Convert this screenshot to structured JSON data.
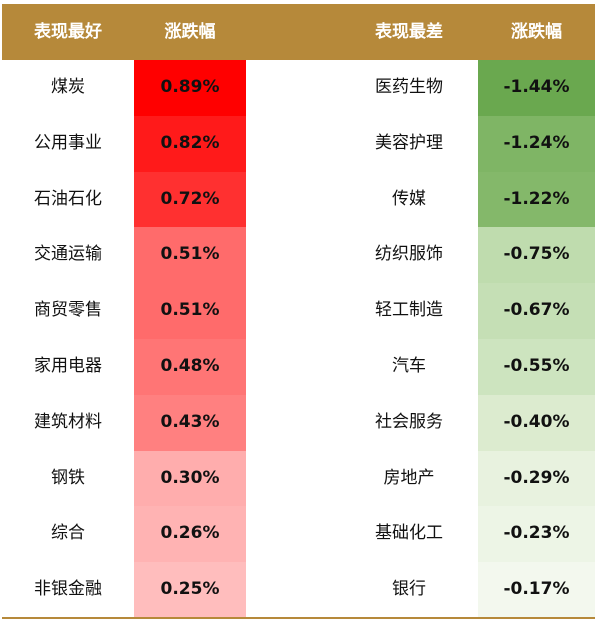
{
  "headers": {
    "best": "表现最好",
    "best_change": "涨跌幅",
    "worst": "表现最差",
    "worst_change": "涨跌幅"
  },
  "colors": {
    "header_bg": "#b6893a",
    "best_scale": [
      "#ff0000",
      "#ff1a1a",
      "#ff3030",
      "#ff6b6b",
      "#ff6b6b",
      "#ff7575",
      "#ff8080",
      "#ffadad",
      "#ffb3b3",
      "#ffbdbd"
    ],
    "worst_scale": [
      "#6aa84f",
      "#7fb565",
      "#84b86a",
      "#bfdcae",
      "#c5dfb5",
      "#cde4bf",
      "#dcebcf",
      "#e8f2df",
      "#edf5e6",
      "#f3f8ee"
    ]
  },
  "rows": [
    {
      "best_name": "煤炭",
      "best_value": "0.89%",
      "worst_name": "医药生物",
      "worst_value": "-1.44%"
    },
    {
      "best_name": "公用事业",
      "best_value": "0.82%",
      "worst_name": "美容护理",
      "worst_value": "-1.24%"
    },
    {
      "best_name": "石油石化",
      "best_value": "0.72%",
      "worst_name": "传媒",
      "worst_value": "-1.22%"
    },
    {
      "best_name": "交通运输",
      "best_value": "0.51%",
      "worst_name": "纺织服饰",
      "worst_value": "-0.75%"
    },
    {
      "best_name": "商贸零售",
      "best_value": "0.51%",
      "worst_name": "轻工制造",
      "worst_value": "-0.67%"
    },
    {
      "best_name": "家用电器",
      "best_value": "0.48%",
      "worst_name": "汽车",
      "worst_value": "-0.55%"
    },
    {
      "best_name": "建筑材料",
      "best_value": "0.43%",
      "worst_name": "社会服务",
      "worst_value": "-0.40%"
    },
    {
      "best_name": "钢铁",
      "best_value": "0.30%",
      "worst_name": "房地产",
      "worst_value": "-0.29%"
    },
    {
      "best_name": "综合",
      "best_value": "0.26%",
      "worst_name": "基础化工",
      "worst_value": "-0.23%"
    },
    {
      "best_name": "非银金融",
      "best_value": "0.25%",
      "worst_name": "银行",
      "worst_value": "-0.17%"
    }
  ]
}
